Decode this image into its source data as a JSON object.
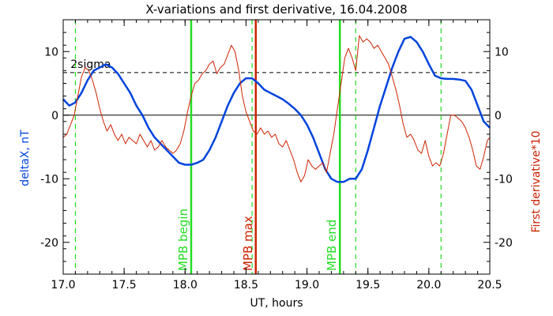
{
  "chart_data": {
    "type": "line",
    "title": "X-variations and first derivative, 16.04.2008",
    "xlabel": "UT, hours",
    "ylabel_left": "deltaX, nT",
    "ylabel_right": "First derivative*10",
    "xlim": [
      17.0,
      20.5
    ],
    "ylim": [
      -25,
      15
    ],
    "x_ticks": [
      17.0,
      17.5,
      18.0,
      18.5,
      19.0,
      19.5,
      20.0,
      20.5
    ],
    "x_tick_labels": [
      "17.0",
      "17.5",
      "18.0",
      "18.5",
      "19.0",
      "19.5",
      "20.0",
      "20.5"
    ],
    "y_ticks": [
      -20,
      -10,
      0,
      10
    ],
    "y_tick_labels": [
      "-20",
      "-10",
      "0",
      "10"
    ],
    "colors": {
      "deltaX": "#0044dd",
      "derivative": "#cc2200",
      "green": "#22dd22",
      "red_line": "#cc2200",
      "axis": "#000000",
      "ylabel_left": "#0044dd",
      "ylabel_right": "#cc2200"
    },
    "sigma_level": 6.7,
    "sigma_label": "2sigma",
    "zero_line": 0,
    "series": [
      {
        "key": "deltaX",
        "x": [
          17.0,
          17.05,
          17.1,
          17.15,
          17.2,
          17.25,
          17.3,
          17.35,
          17.4,
          17.45,
          17.5,
          17.55,
          17.6,
          17.65,
          17.7,
          17.75,
          17.8,
          17.85,
          17.9,
          17.95,
          18.0,
          18.05,
          18.1,
          18.15,
          18.2,
          18.25,
          18.3,
          18.35,
          18.4,
          18.45,
          18.5,
          18.55,
          18.6,
          18.65,
          18.7,
          18.75,
          18.8,
          18.85,
          18.9,
          18.95,
          19.0,
          19.05,
          19.1,
          19.15,
          19.2,
          19.25,
          19.3,
          19.35,
          19.4,
          19.45,
          19.5,
          19.55,
          19.6,
          19.65,
          19.7,
          19.75,
          19.8,
          19.85,
          19.9,
          19.95,
          20.0,
          20.05,
          20.1,
          20.15,
          20.2,
          20.25,
          20.3,
          20.35,
          20.4,
          20.45,
          20.5
        ],
        "y": [
          2.5,
          1.5,
          2.0,
          3.5,
          5.5,
          7.0,
          7.5,
          8.0,
          7.5,
          6.5,
          5.0,
          3.5,
          1.5,
          0.0,
          -2.0,
          -3.5,
          -4.5,
          -5.5,
          -6.5,
          -7.5,
          -7.8,
          -7.8,
          -7.5,
          -7.0,
          -5.5,
          -3.5,
          -1.0,
          1.5,
          3.5,
          5.0,
          5.8,
          5.8,
          5.0,
          4.0,
          3.5,
          3.0,
          2.5,
          1.8,
          1.0,
          0.0,
          -1.5,
          -3.5,
          -6.0,
          -8.5,
          -10.0,
          -10.5,
          -10.5,
          -10.0,
          -10.0,
          -8.5,
          -5.5,
          -2.0,
          1.5,
          4.5,
          7.5,
          10.0,
          12.0,
          12.3,
          11.5,
          10.0,
          8.0,
          6.2,
          5.8,
          5.7,
          5.7,
          5.6,
          5.4,
          4.0,
          1.5,
          -1.0,
          -2.0
        ]
      },
      {
        "key": "derivative",
        "x": [
          17.0,
          17.03,
          17.06,
          17.09,
          17.12,
          17.15,
          17.18,
          17.21,
          17.24,
          17.27,
          17.3,
          17.33,
          17.36,
          17.39,
          17.42,
          17.45,
          17.48,
          17.51,
          17.54,
          17.57,
          17.6,
          17.63,
          17.66,
          17.69,
          17.72,
          17.75,
          17.78,
          17.81,
          17.84,
          17.87,
          17.9,
          17.93,
          17.96,
          17.99,
          18.02,
          18.05,
          18.08,
          18.11,
          18.14,
          18.17,
          18.2,
          18.23,
          18.26,
          18.29,
          18.32,
          18.35,
          18.38,
          18.41,
          18.44,
          18.47,
          18.5,
          18.53,
          18.56,
          18.59,
          18.62,
          18.65,
          18.68,
          18.71,
          18.74,
          18.77,
          18.8,
          18.83,
          18.86,
          18.89,
          18.92,
          18.95,
          18.98,
          19.01,
          19.04,
          19.07,
          19.1,
          19.13,
          19.16,
          19.19,
          19.22,
          19.25,
          19.28,
          19.31,
          19.34,
          19.37,
          19.4,
          19.43,
          19.46,
          19.49,
          19.52,
          19.55,
          19.58,
          19.61,
          19.64,
          19.67,
          19.7,
          19.73,
          19.76,
          19.79,
          19.82,
          19.85,
          19.88,
          19.91,
          19.94,
          19.97,
          20.0,
          20.03,
          20.06,
          20.09,
          20.12,
          20.15,
          20.18,
          20.21,
          20.24,
          20.27,
          20.3,
          20.33,
          20.36,
          20.39,
          20.42,
          20.45,
          20.48,
          20.5
        ],
        "y": [
          -3.5,
          -3.0,
          -1.5,
          0.0,
          3.0,
          6.0,
          7.5,
          7.0,
          5.5,
          3.5,
          1.0,
          -1.0,
          -2.5,
          -1.5,
          -3.0,
          -4.0,
          -3.0,
          -4.5,
          -3.5,
          -4.0,
          -4.5,
          -3.0,
          -4.0,
          -5.0,
          -4.0,
          -5.5,
          -5.0,
          -4.0,
          -5.0,
          -5.5,
          -6.0,
          -5.5,
          -4.5,
          -2.5,
          0.5,
          3.0,
          5.0,
          5.5,
          6.5,
          7.0,
          8.0,
          8.5,
          6.5,
          7.5,
          8.0,
          9.5,
          11.0,
          10.0,
          7.0,
          3.0,
          0.5,
          -1.0,
          -2.5,
          -3.0,
          -2.0,
          -3.0,
          -2.5,
          -3.5,
          -3.0,
          -4.5,
          -5.0,
          -4.0,
          -5.5,
          -7.0,
          -9.0,
          -10.5,
          -9.5,
          -7.0,
          -8.0,
          -8.5,
          -8.0,
          -7.5,
          -9.0,
          -6.0,
          -3.0,
          1.0,
          5.0,
          9.0,
          10.5,
          9.0,
          7.0,
          12.5,
          11.5,
          12.0,
          11.5,
          10.5,
          11.0,
          10.0,
          9.0,
          8.0,
          6.0,
          4.0,
          1.5,
          -1.5,
          -3.5,
          -3.0,
          -4.0,
          -5.5,
          -6.0,
          -4.0,
          -6.5,
          -8.0,
          -7.5,
          -8.0,
          -6.0,
          -3.0,
          0.0,
          0.0,
          -0.5,
          -1.0,
          -2.0,
          -3.5,
          -5.5,
          -8.0,
          -8.5,
          -6.5,
          -4.0,
          -3.5
        ]
      }
    ],
    "vertical_lines": [
      {
        "x": 17.1,
        "style": "dashed",
        "color_key": "green",
        "label": ""
      },
      {
        "x": 18.05,
        "style": "solid",
        "color_key": "green",
        "label": "MPB begin"
      },
      {
        "x": 18.55,
        "style": "dashed",
        "color_key": "green",
        "label": ""
      },
      {
        "x": 18.58,
        "style": "solid",
        "color_key": "red_line",
        "label": "MPB max"
      },
      {
        "x": 19.27,
        "style": "solid",
        "color_key": "green",
        "label": "MPB end"
      },
      {
        "x": 19.4,
        "style": "dashed",
        "color_key": "green",
        "label": ""
      },
      {
        "x": 20.1,
        "style": "dashed",
        "color_key": "green",
        "label": ""
      }
    ]
  }
}
